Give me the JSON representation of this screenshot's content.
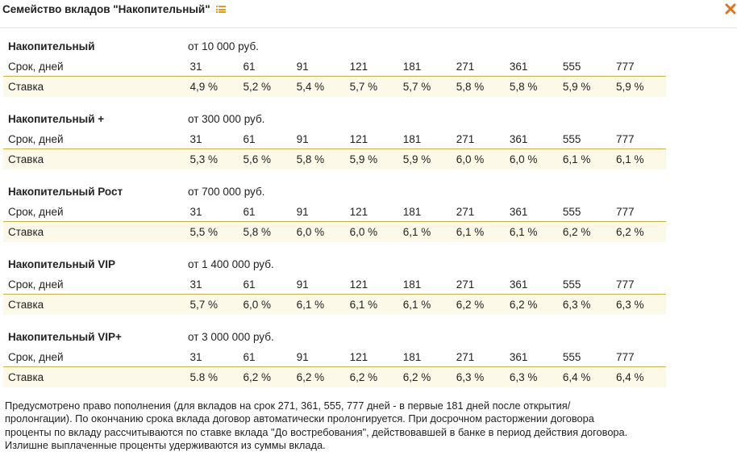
{
  "header": {
    "title": "Семейство вкладов \"Накопительный\"",
    "icons": {
      "list": "list-icon",
      "close": "close-icon"
    },
    "colors": {
      "list_icon": "#e89b17",
      "close_icon": "#e2731c"
    }
  },
  "row_labels": {
    "term": "Срок, дней",
    "rate": "Ставка"
  },
  "products": [
    {
      "name": "Накопительный",
      "min_amount": "от 10 000 руб.",
      "terms": [
        "31",
        "61",
        "91",
        "121",
        "181",
        "271",
        "361",
        "555",
        "777"
      ],
      "rates": [
        "4,9 %",
        "5,2 %",
        "5,4 %",
        "5,7 %",
        "5,7 %",
        "5,8 %",
        "5,8 %",
        "5,9 %",
        "5,9 %"
      ]
    },
    {
      "name": "Накопительный +",
      "min_amount": "от 300 000 руб.",
      "terms": [
        "31",
        "61",
        "91",
        "121",
        "181",
        "271",
        "361",
        "555",
        "777"
      ],
      "rates": [
        "5,3 %",
        "5,6 %",
        "5,8 %",
        "5,9 %",
        "5,9 %",
        "6,0 %",
        "6,0 %",
        "6,1 %",
        "6,1 %"
      ]
    },
    {
      "name": "Накопительный Рост",
      "min_amount": "от 700 000 руб.",
      "terms": [
        "31",
        "61",
        "91",
        "121",
        "181",
        "271",
        "361",
        "555",
        "777"
      ],
      "rates": [
        "5,5 %",
        "5,8 %",
        "6,0 %",
        "6,0 %",
        "6,1 %",
        "6,1 %",
        "6,1 %",
        "6,2 %",
        "6,2 %"
      ]
    },
    {
      "name": "Накопительный VIP",
      "min_amount": "от 1 400 000 руб.",
      "terms": [
        "31",
        "61",
        "91",
        "121",
        "181",
        "271",
        "361",
        "555",
        "777"
      ],
      "rates": [
        "5,7 %",
        "6,0 %",
        "6,1 %",
        "6,1 %",
        "6,1 %",
        "6,2 %",
        "6,2 %",
        "6,3 %",
        "6,3 %"
      ]
    },
    {
      "name": "Накопительный VIP+",
      "min_amount": "от 3 000 000 руб.",
      "terms": [
        "31",
        "61",
        "91",
        "121",
        "181",
        "271",
        "361",
        "555",
        "777"
      ],
      "rates": [
        "5.8 %",
        "6,2 %",
        "6,2 %",
        "6,2 %",
        "6,2 %",
        "6,3 %",
        "6,3 %",
        "6,4 %",
        "6,4 %"
      ]
    }
  ],
  "note": {
    "lines": [
      "Предусмотрено право пополнения (для вкладов на срок 271, 361, 555, 777 дней - в первые 181 дней после открытия/",
      "пролонгации). По окончанию срока вклада договор автоматически пролонгируется. При досрочном расторжении договора",
      "проценты по вкладу рассчитываются по ставке вклада \"До востребования\", действовавшей в банке в период действия договора.",
      "Излишне выплаченные проценты удерживаются из суммы вклада."
    ]
  }
}
